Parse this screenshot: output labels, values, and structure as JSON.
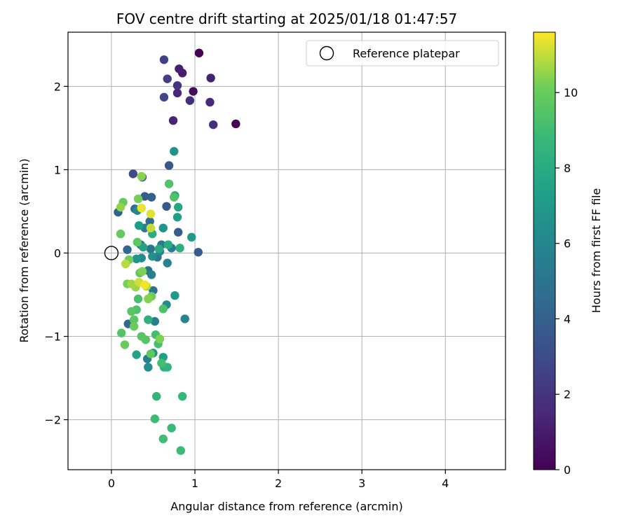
{
  "chart_data": {
    "type": "scatter",
    "title": "FOV centre drift starting at 2025/01/18 01:47:57",
    "xlabel": "Angular distance from reference (arcmin)",
    "ylabel": "Rotation from reference (arcmin)",
    "xlim": [
      -0.52,
      4.72
    ],
    "ylim": [
      -2.6,
      2.65
    ],
    "xticks": [
      0,
      1,
      2,
      3,
      4
    ],
    "xtick_labels": [
      "0",
      "1",
      "2",
      "3",
      "4"
    ],
    "yticks": [
      -2,
      -1,
      0,
      1,
      2
    ],
    "ytick_labels": [
      "−2",
      "−1",
      "0",
      "1",
      "2"
    ],
    "grid": true,
    "legend": {
      "position": "top-right",
      "entries": [
        {
          "label": "Reference platepar",
          "marker": "open-circle"
        }
      ]
    },
    "reference_point": {
      "x": 0,
      "y": 0
    },
    "colorbar": {
      "label": "Hours from first FF file",
      "colormap": "viridis",
      "range": [
        0,
        11.6
      ],
      "ticks": [
        0,
        2,
        4,
        6,
        8,
        10
      ],
      "tick_labels": [
        "0",
        "2",
        "4",
        "6",
        "8",
        "10"
      ]
    },
    "points": [
      {
        "x": 1.05,
        "y": 2.4,
        "h": 0.1
      },
      {
        "x": 1.49,
        "y": 1.55,
        "h": 0.0
      },
      {
        "x": 0.98,
        "y": 1.94,
        "h": 0.4
      },
      {
        "x": 0.85,
        "y": 2.16,
        "h": 1.0
      },
      {
        "x": 0.81,
        "y": 2.21,
        "h": 1.1
      },
      {
        "x": 1.19,
        "y": 2.1,
        "h": 1.2
      },
      {
        "x": 0.74,
        "y": 1.59,
        "h": 1.3
      },
      {
        "x": 0.79,
        "y": 1.92,
        "h": 1.4
      },
      {
        "x": 1.18,
        "y": 1.81,
        "h": 1.6
      },
      {
        "x": 0.94,
        "y": 1.83,
        "h": 1.7
      },
      {
        "x": 1.22,
        "y": 1.54,
        "h": 1.8
      },
      {
        "x": 0.79,
        "y": 2.01,
        "h": 2.0
      },
      {
        "x": 0.63,
        "y": 2.32,
        "h": 2.5
      },
      {
        "x": 0.67,
        "y": 2.09,
        "h": 2.5
      },
      {
        "x": 0.63,
        "y": 1.87,
        "h": 2.8
      },
      {
        "x": 0.26,
        "y": 0.95,
        "h": 3.0
      },
      {
        "x": 0.37,
        "y": 0.91,
        "h": 3.5
      },
      {
        "x": 0.69,
        "y": 1.05,
        "h": 3.6
      },
      {
        "x": 0.4,
        "y": 0.68,
        "h": 3.8
      },
      {
        "x": 0.66,
        "y": 0.56,
        "h": 3.7
      },
      {
        "x": 0.8,
        "y": 0.25,
        "h": 3.9
      },
      {
        "x": 1.04,
        "y": 0.01,
        "h": 3.8
      },
      {
        "x": 0.48,
        "y": 0.67,
        "h": 4.0
      },
      {
        "x": 0.08,
        "y": 0.49,
        "h": 4.1
      },
      {
        "x": 0.19,
        "y": 0.04,
        "h": 4.3
      },
      {
        "x": 0.2,
        "y": -0.85,
        "h": 4.5
      },
      {
        "x": 0.46,
        "y": 0.38,
        "h": 4.6
      },
      {
        "x": 0.28,
        "y": 0.53,
        "h": 4.7
      },
      {
        "x": 0.35,
        "y": 0.1,
        "h": 4.8
      },
      {
        "x": 0.5,
        "y": -0.45,
        "h": 4.9
      },
      {
        "x": 0.44,
        "y": -0.21,
        "h": 5.0
      },
      {
        "x": 0.47,
        "y": 0.05,
        "h": 5.1
      },
      {
        "x": 0.55,
        "y": -0.05,
        "h": 5.2
      },
      {
        "x": 0.6,
        "y": 0.1,
        "h": 5.3
      },
      {
        "x": 0.72,
        "y": 0.06,
        "h": 5.4
      },
      {
        "x": 0.4,
        "y": 0.3,
        "h": 5.5
      },
      {
        "x": 0.52,
        "y": -0.82,
        "h": 5.5
      },
      {
        "x": 0.43,
        "y": -1.27,
        "h": 5.6
      },
      {
        "x": 0.48,
        "y": -0.26,
        "h": 5.7
      },
      {
        "x": 0.67,
        "y": -0.12,
        "h": 5.8
      },
      {
        "x": 0.88,
        "y": -0.79,
        "h": 5.9
      },
      {
        "x": 0.58,
        "y": 0.02,
        "h": 6.0
      },
      {
        "x": 0.31,
        "y": 0.51,
        "h": 6.1
      },
      {
        "x": 0.36,
        "y": -0.06,
        "h": 6.2
      },
      {
        "x": 0.66,
        "y": -0.62,
        "h": 6.3
      },
      {
        "x": 0.44,
        "y": -1.37,
        "h": 6.4
      },
      {
        "x": 0.5,
        "y": -1.2,
        "h": 6.5
      },
      {
        "x": 0.49,
        "y": -0.04,
        "h": 6.6
      },
      {
        "x": 0.75,
        "y": 1.22,
        "h": 6.7
      },
      {
        "x": 0.62,
        "y": 0.3,
        "h": 6.8
      },
      {
        "x": 0.3,
        "y": -0.07,
        "h": 6.9
      },
      {
        "x": 0.96,
        "y": 0.19,
        "h": 7.0
      },
      {
        "x": 0.76,
        "y": -0.51,
        "h": 7.1
      },
      {
        "x": 0.33,
        "y": 0.33,
        "h": 7.2
      },
      {
        "x": 0.79,
        "y": 0.43,
        "h": 7.3
      },
      {
        "x": 0.62,
        "y": -1.25,
        "h": 7.4
      },
      {
        "x": 0.3,
        "y": -1.22,
        "h": 7.5
      },
      {
        "x": 0.38,
        "y": 0.07,
        "h": 7.6
      },
      {
        "x": 0.8,
        "y": 0.55,
        "h": 7.7
      },
      {
        "x": 0.76,
        "y": 0.69,
        "h": 7.8
      },
      {
        "x": 0.57,
        "y": 0.05,
        "h": 7.9
      },
      {
        "x": 0.68,
        "y": 0.1,
        "h": 8.0
      },
      {
        "x": 0.49,
        "y": 0.23,
        "h": 8.1
      },
      {
        "x": 0.82,
        "y": 0.06,
        "h": 8.2
      },
      {
        "x": 0.44,
        "y": -0.8,
        "h": 8.3
      },
      {
        "x": 0.63,
        "y": -1.37,
        "h": 8.4
      },
      {
        "x": 0.67,
        "y": -1.37,
        "h": 8.5
      },
      {
        "x": 0.54,
        "y": -1.72,
        "h": 8.6
      },
      {
        "x": 0.85,
        "y": -1.72,
        "h": 8.7
      },
      {
        "x": 0.72,
        "y": -2.1,
        "h": 8.8
      },
      {
        "x": 0.83,
        "y": -2.37,
        "h": 8.9
      },
      {
        "x": 0.52,
        "y": -1.99,
        "h": 8.9
      },
      {
        "x": 0.62,
        "y": -2.23,
        "h": 9.0
      },
      {
        "x": 0.6,
        "y": -1.32,
        "h": 9.1
      },
      {
        "x": 0.53,
        "y": -0.98,
        "h": 9.1
      },
      {
        "x": 0.56,
        "y": -1.09,
        "h": 9.2
      },
      {
        "x": 0.32,
        "y": -0.55,
        "h": 9.2
      },
      {
        "x": 0.3,
        "y": -0.68,
        "h": 9.3
      },
      {
        "x": 0.62,
        "y": -0.67,
        "h": 9.3
      },
      {
        "x": 0.69,
        "y": 0.83,
        "h": 9.4
      },
      {
        "x": 0.75,
        "y": 0.67,
        "h": 9.4
      },
      {
        "x": 0.12,
        "y": -0.96,
        "h": 9.5
      },
      {
        "x": 0.41,
        "y": -1.04,
        "h": 9.5
      },
      {
        "x": 0.36,
        "y": -1.0,
        "h": 9.6
      },
      {
        "x": 0.24,
        "y": -0.7,
        "h": 9.6
      },
      {
        "x": 0.31,
        "y": 0.13,
        "h": 9.7
      },
      {
        "x": 0.27,
        "y": -0.8,
        "h": 9.7
      },
      {
        "x": 0.47,
        "y": -1.21,
        "h": 9.8
      },
      {
        "x": 0.34,
        "y": -0.24,
        "h": 9.8
      },
      {
        "x": 0.14,
        "y": 0.61,
        "h": 9.9
      },
      {
        "x": 0.11,
        "y": 0.23,
        "h": 9.9
      },
      {
        "x": 0.27,
        "y": -0.88,
        "h": 10.0
      },
      {
        "x": 0.16,
        "y": -1.1,
        "h": 10.0
      },
      {
        "x": 0.48,
        "y": -0.52,
        "h": 10.1
      },
      {
        "x": 0.21,
        "y": -0.08,
        "h": 10.1
      },
      {
        "x": 0.32,
        "y": 0.65,
        "h": 10.2
      },
      {
        "x": 0.19,
        "y": -0.37,
        "h": 10.2
      },
      {
        "x": 0.37,
        "y": -0.22,
        "h": 10.3
      },
      {
        "x": 0.58,
        "y": -1.03,
        "h": 10.3
      },
      {
        "x": 0.36,
        "y": 0.92,
        "h": 10.4
      },
      {
        "x": 0.44,
        "y": -0.55,
        "h": 10.4
      },
      {
        "x": 0.11,
        "y": 0.55,
        "h": 10.5
      },
      {
        "x": 0.29,
        "y": -0.41,
        "h": 10.6
      },
      {
        "x": 0.24,
        "y": -0.37,
        "h": 10.7
      },
      {
        "x": 0.42,
        "y": -0.4,
        "h": 10.8
      },
      {
        "x": 0.17,
        "y": -0.13,
        "h": 10.9
      },
      {
        "x": 0.47,
        "y": 0.3,
        "h": 11.0
      },
      {
        "x": 0.33,
        "y": -0.35,
        "h": 11.1
      },
      {
        "x": 0.47,
        "y": 0.47,
        "h": 11.3
      },
      {
        "x": 0.36,
        "y": 0.54,
        "h": 11.4
      },
      {
        "x": 0.4,
        "y": -0.38,
        "h": 11.5
      }
    ]
  }
}
